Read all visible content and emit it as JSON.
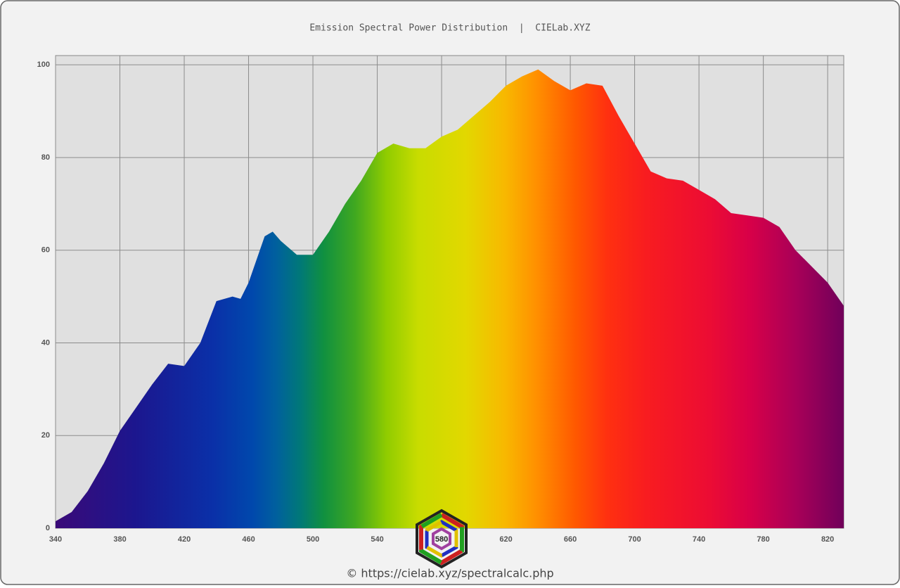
{
  "chart_data": {
    "type": "area",
    "title": "Emission Spectral Power Distribution  |  CIELab.XYZ",
    "footer": "© https://cielab.xyz/spectralcalc.php",
    "logo_label": "580",
    "x": [
      340,
      350,
      360,
      370,
      380,
      390,
      400,
      410,
      420,
      430,
      440,
      450,
      455,
      460,
      470,
      475,
      480,
      490,
      500,
      510,
      520,
      530,
      540,
      550,
      560,
      570,
      580,
      590,
      600,
      610,
      620,
      630,
      640,
      650,
      660,
      670,
      680,
      690,
      700,
      710,
      720,
      730,
      740,
      750,
      760,
      770,
      780,
      790,
      800,
      810,
      820,
      830
    ],
    "values": [
      1.5,
      3.5,
      8,
      14,
      21,
      26,
      31,
      35.5,
      35,
      40,
      49,
      50,
      49.5,
      53,
      63,
      64,
      62,
      59,
      59,
      64,
      70,
      75,
      81,
      83,
      82,
      82,
      84.5,
      86,
      89,
      92,
      95.5,
      97.5,
      99,
      96.5,
      94.5,
      96,
      95.5,
      89,
      83,
      77,
      75.5,
      75,
      73,
      71,
      68,
      67.5,
      67,
      65,
      60,
      56.5,
      53,
      48
    ],
    "xlim": [
      340,
      830
    ],
    "ylim": [
      0,
      102
    ],
    "xticks": [
      340,
      380,
      420,
      460,
      500,
      540,
      580,
      620,
      660,
      700,
      740,
      780,
      820
    ],
    "yticks": [
      0,
      20,
      40,
      60,
      80,
      100
    ],
    "grid": true
  }
}
